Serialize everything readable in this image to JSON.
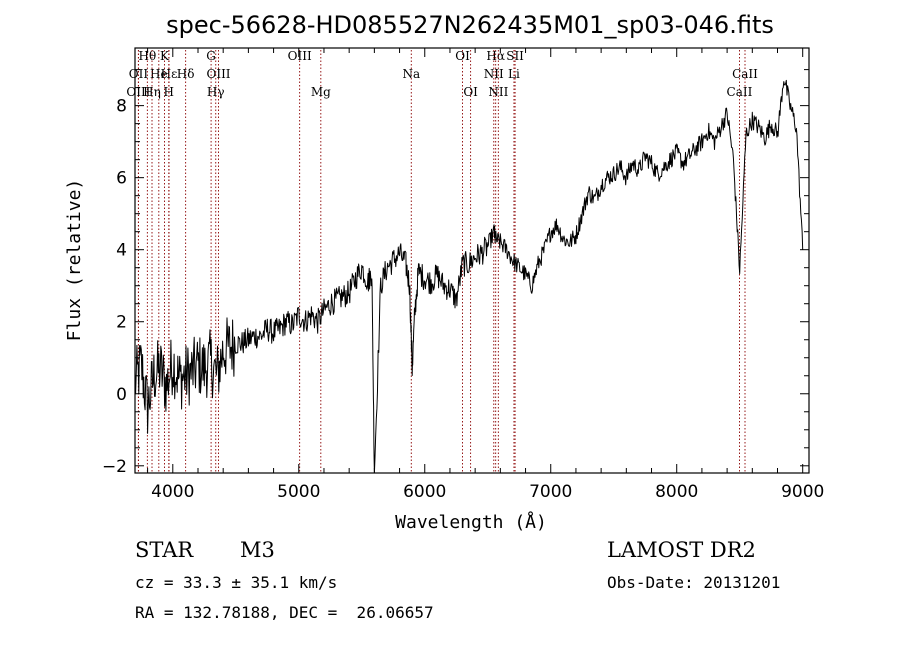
{
  "chart_data": {
    "type": "line",
    "title": "spec-56628-HD085527N262435M01_sp03-046.fits",
    "xlabel": "Wavelength (Å)",
    "ylabel": "Flux (relative)",
    "xlim": [
      3700,
      9050
    ],
    "ylim": [
      -2.2,
      9.6
    ],
    "xticks": [
      4000,
      5000,
      6000,
      7000,
      8000,
      9000
    ],
    "yticks": [
      -2,
      0,
      2,
      4,
      6,
      8
    ],
    "grid": false,
    "series": [
      {
        "color": "#000000",
        "x": [
          3700,
          3750,
          3800,
          3850,
          3900,
          3950,
          4000,
          4050,
          4100,
          4150,
          4200,
          4250,
          4300,
          4350,
          4400,
          4450,
          4500,
          4550,
          4600,
          4650,
          4700,
          4750,
          4800,
          4850,
          4900,
          4950,
          5000,
          5050,
          5100,
          5150,
          5200,
          5250,
          5300,
          5350,
          5400,
          5450,
          5500,
          5550,
          5580,
          5600,
          5650,
          5700,
          5750,
          5800,
          5850,
          5880,
          5900,
          5920,
          5950,
          6000,
          6050,
          6100,
          6150,
          6200,
          6250,
          6300,
          6350,
          6400,
          6450,
          6500,
          6550,
          6560,
          6600,
          6650,
          6700,
          6750,
          6800,
          6850,
          6900,
          6950,
          7000,
          7050,
          7100,
          7150,
          7200,
          7250,
          7300,
          7350,
          7400,
          7450,
          7500,
          7550,
          7600,
          7650,
          7700,
          7750,
          7800,
          7850,
          7900,
          7950,
          8000,
          8050,
          8100,
          8150,
          8200,
          8250,
          8300,
          8350,
          8400,
          8450,
          8500,
          8550,
          8600,
          8650,
          8700,
          8750,
          8800,
          8850,
          8900,
          8950,
          9000
        ],
        "y": [
          0.3,
          0.8,
          -0.4,
          0.5,
          0.7,
          0.2,
          0.9,
          0.4,
          0.5,
          0.6,
          0.8,
          0.7,
          0.9,
          0.5,
          1.2,
          1.3,
          1.4,
          1.4,
          1.5,
          1.6,
          1.6,
          1.8,
          1.7,
          1.8,
          2.0,
          1.9,
          2.2,
          2.0,
          2.2,
          2.0,
          2.3,
          2.5,
          2.6,
          2.7,
          2.8,
          3.2,
          3.5,
          3.1,
          3.4,
          -2.2,
          3.0,
          3.5,
          3.7,
          3.9,
          3.6,
          3.0,
          0.7,
          2.2,
          3.4,
          3.2,
          3.1,
          3.3,
          3.0,
          2.9,
          2.6,
          3.6,
          3.6,
          3.8,
          3.9,
          4.1,
          4.5,
          4.3,
          4.2,
          4.0,
          3.7,
          3.5,
          3.3,
          3.0,
          3.6,
          4.0,
          4.5,
          4.7,
          4.3,
          4.2,
          4.4,
          5.0,
          5.6,
          5.4,
          5.8,
          6.0,
          6.1,
          6.3,
          6.0,
          6.4,
          6.2,
          6.6,
          6.4,
          6.1,
          6.3,
          6.5,
          6.7,
          6.4,
          6.6,
          6.8,
          7.0,
          7.3,
          7.0,
          7.4,
          7.8,
          6.5,
          3.4,
          7.2,
          7.6,
          7.4,
          7.1,
          7.5,
          7.2,
          8.8,
          8.0,
          7.4,
          4.0
        ]
      }
    ],
    "annotations": [
      {
        "label": "Hθ",
        "wavelength": 3798,
        "row": 1
      },
      {
        "label": "OII",
        "wavelength": 3727,
        "row": 2
      },
      {
        "label": "OIII",
        "wavelength": 3727,
        "row": 3
      },
      {
        "label": "K",
        "wavelength": 3934,
        "row": 1
      },
      {
        "label": "He",
        "wavelength": 3889,
        "row": 2
      },
      {
        "label": "Hε",
        "wavelength": 3970,
        "row": 2
      },
      {
        "label": "Hη",
        "wavelength": 3835,
        "row": 3
      },
      {
        "label": "H",
        "wavelength": 3968,
        "row": 3
      },
      {
        "label": "Hδ",
        "wavelength": 4102,
        "row": 2
      },
      {
        "label": "G",
        "wavelength": 4304,
        "row": 1
      },
      {
        "label": "OIII",
        "wavelength": 4363,
        "row": 2
      },
      {
        "label": "Hγ",
        "wavelength": 4341,
        "row": 3
      },
      {
        "label": "OIII",
        "wavelength": 5007,
        "row": 1
      },
      {
        "label": "Mg",
        "wavelength": 5175,
        "row": 3
      },
      {
        "label": "Na",
        "wavelength": 5893,
        "row": 2
      },
      {
        "label": "OI",
        "wavelength": 6300,
        "row": 1
      },
      {
        "label": "OI",
        "wavelength": 6364,
        "row": 3
      },
      {
        "label": "Hα",
        "wavelength": 6563,
        "row": 1
      },
      {
        "label": "SII",
        "wavelength": 6717,
        "row": 1
      },
      {
        "label": "NII",
        "wavelength": 6548,
        "row": 2
      },
      {
        "label": "Li",
        "wavelength": 6708,
        "row": 2
      },
      {
        "label": "NII",
        "wavelength": 6584,
        "row": 3
      },
      {
        "label": "CaII",
        "wavelength": 8542,
        "row": 2
      },
      {
        "label": "CaII",
        "wavelength": 8498,
        "row": 3
      }
    ],
    "line_markers_color": "#8b0000"
  },
  "info": {
    "object_class": "STAR",
    "subclass": "M3",
    "survey": "LAMOST DR2",
    "cz": "cz = 33.3 ± 35.1 km/s",
    "obs_date": "Obs-Date: 20131201",
    "radec": "RA = 132.78188, DEC =  26.06657"
  }
}
